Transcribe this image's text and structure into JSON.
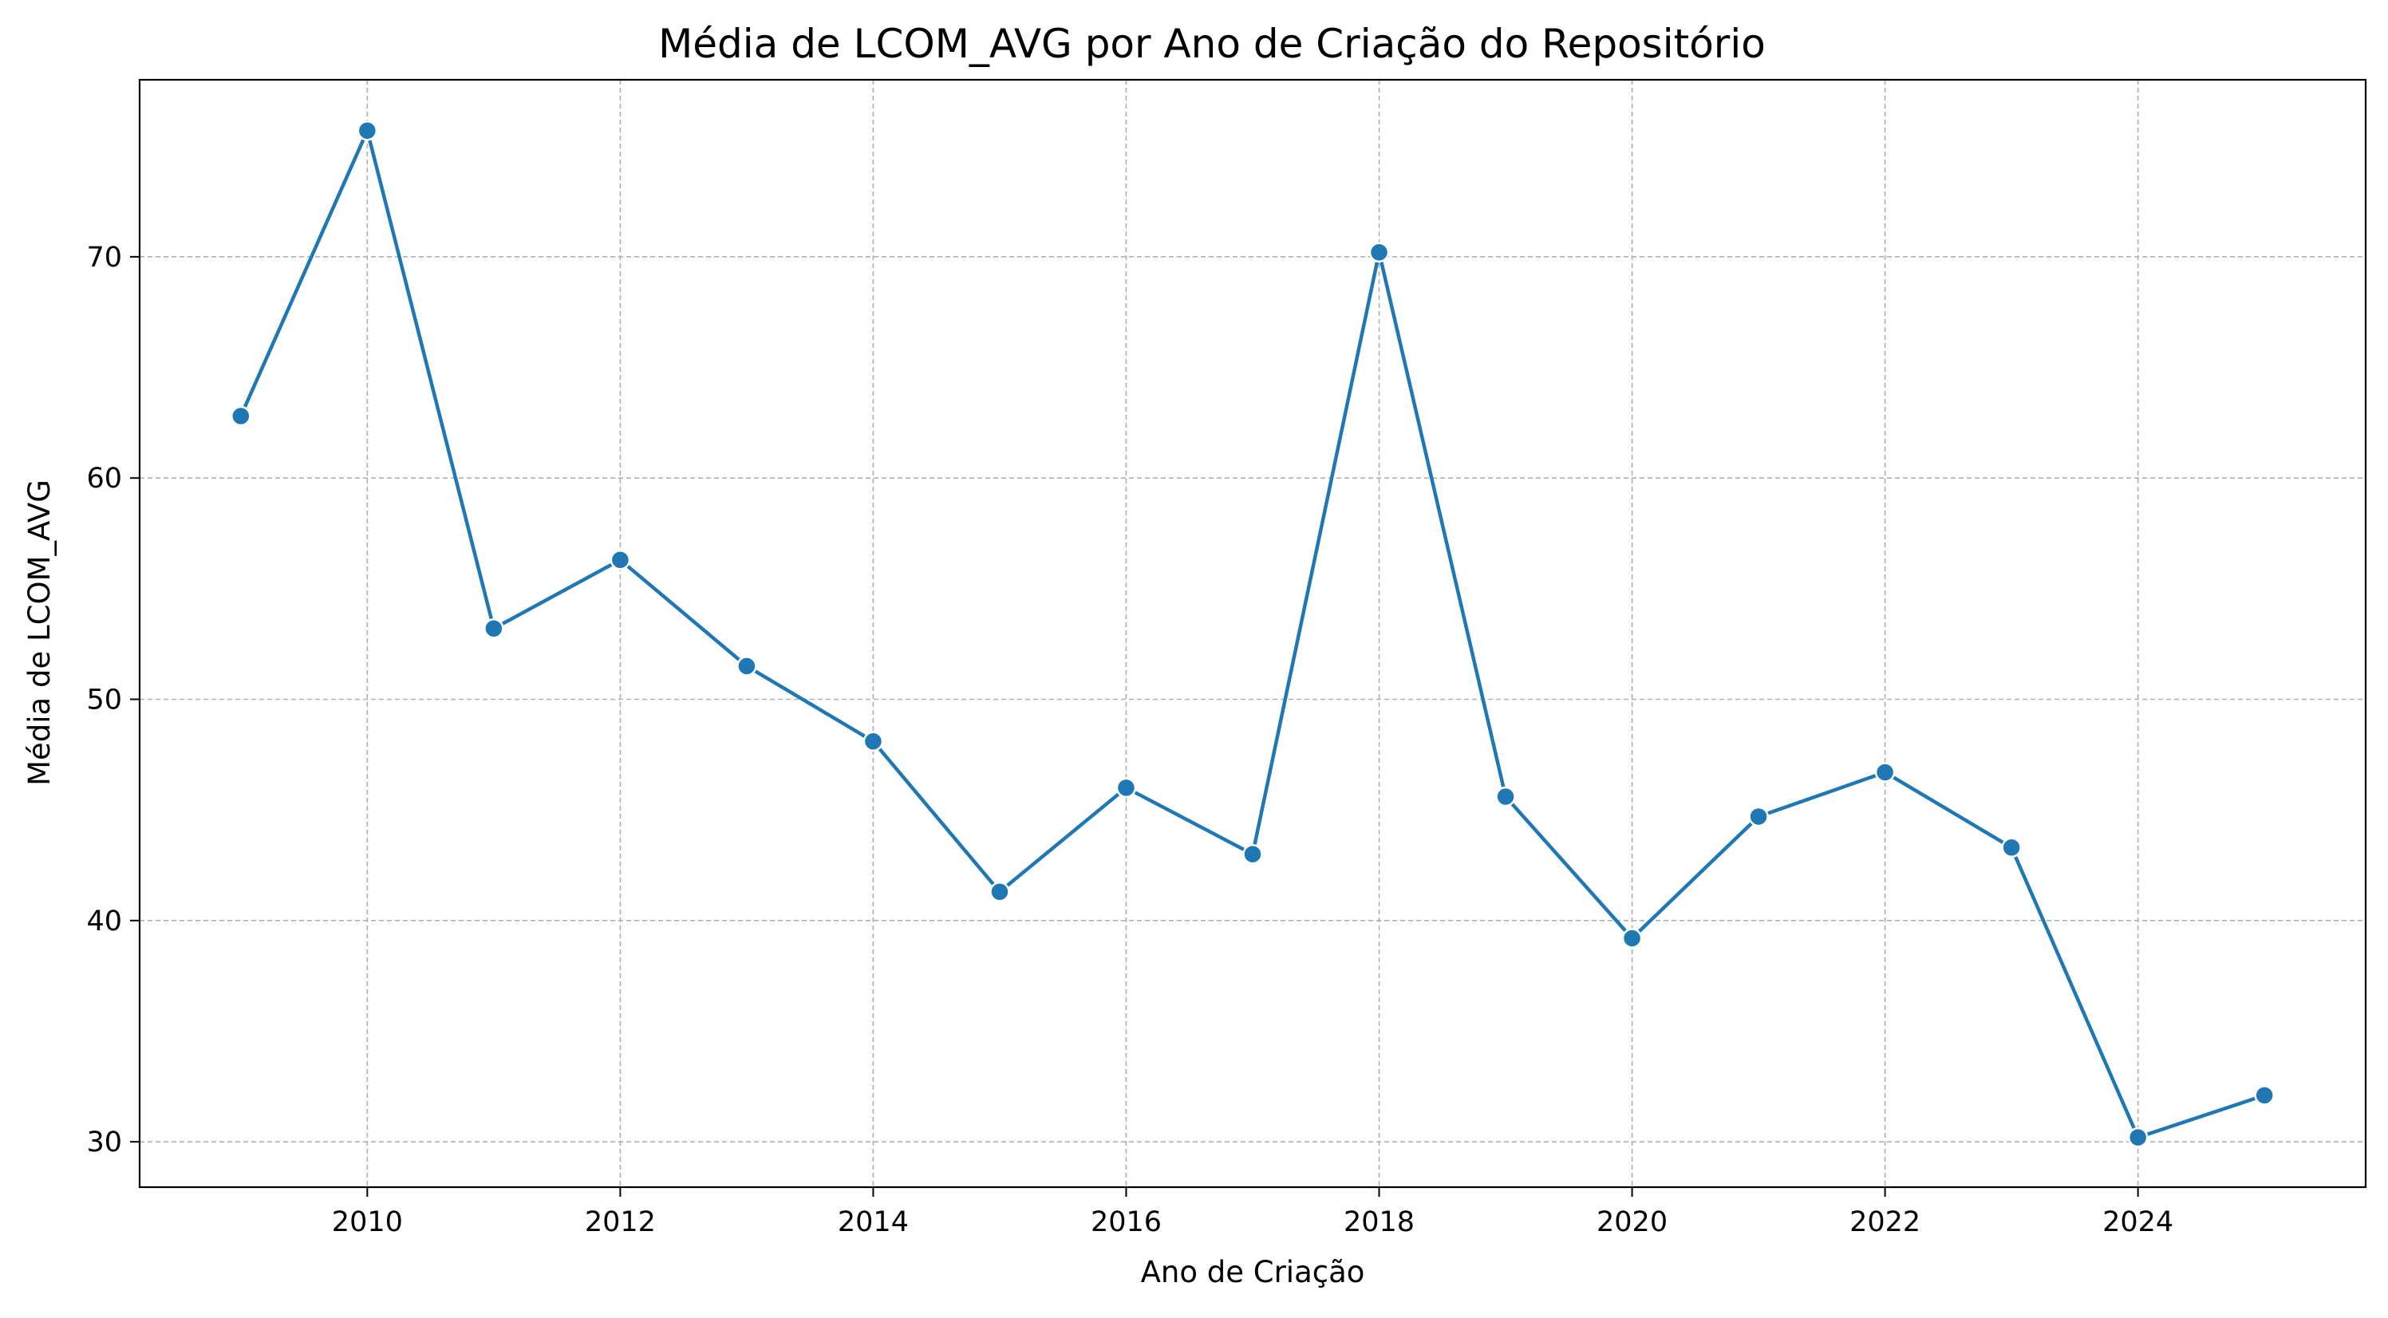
{
  "chart_data": {
    "type": "line",
    "title": "Média de LCOM_AVG por Ano de Criação do Repositório",
    "xlabel": "Ano de Criação",
    "ylabel": "Média de LCOM_AVG",
    "x": [
      2009,
      2010,
      2011,
      2012,
      2013,
      2014,
      2015,
      2016,
      2017,
      2018,
      2019,
      2020,
      2021,
      2022,
      2023,
      2024,
      2025
    ],
    "series": [
      {
        "values": [
          62.8,
          75.7,
          53.2,
          56.3,
          51.5,
          48.1,
          41.3,
          46.0,
          43.0,
          70.2,
          45.6,
          39.2,
          44.7,
          46.7,
          43.3,
          30.2,
          32.1
        ],
        "color": "#1f77b4"
      }
    ],
    "xlim": [
      2008.2,
      2025.8
    ],
    "ylim": [
      27.95,
      78.0
    ],
    "xticks": [
      "2010",
      "2012",
      "2014",
      "2016",
      "2018",
      "2020",
      "2022",
      "2024"
    ],
    "yticks": [
      "30",
      "40",
      "50",
      "60",
      "70"
    ],
    "grid": true,
    "grid_style": "dashed",
    "marker": "circle"
  }
}
